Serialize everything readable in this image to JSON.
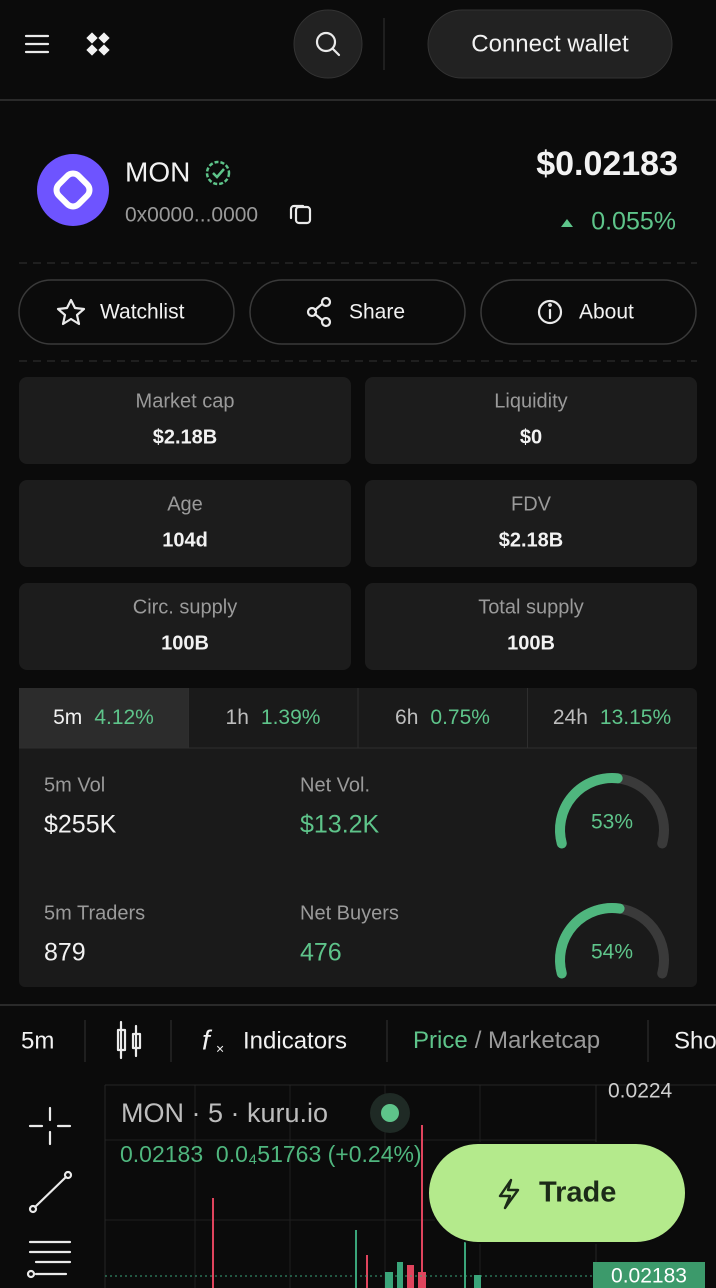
{
  "header": {
    "connect": "Connect wallet"
  },
  "token": {
    "name": "MON",
    "address": "0x0000...0000",
    "price": "$0.02183",
    "change": "0.055%"
  },
  "actions": [
    "Watchlist",
    "Share",
    "About"
  ],
  "stats": [
    {
      "label": "Market cap",
      "value": "$2.18B"
    },
    {
      "label": "Liquidity",
      "value": "$0"
    },
    {
      "label": "Age",
      "value": "104d"
    },
    {
      "label": "FDV",
      "value": "$2.18B"
    },
    {
      "label": "Circ. supply",
      "value": "100B"
    },
    {
      "label": "Total supply",
      "value": "100B"
    }
  ],
  "timeframes": [
    {
      "label": "5m",
      "change": "4.12%"
    },
    {
      "label": "1h",
      "change": "1.39%"
    },
    {
      "label": "6h",
      "change": "0.75%"
    },
    {
      "label": "24h",
      "change": "13.15%"
    }
  ],
  "metrics": [
    {
      "label": "5m Vol",
      "value": "$255K",
      "positive": false
    },
    {
      "label": "Net Vol.",
      "value": "$13.2K",
      "positive": true
    },
    {
      "label": "5m Traders",
      "value": "879",
      "positive": false
    },
    {
      "label": "Net Buyers",
      "value": "476",
      "positive": true
    }
  ],
  "gauges": [
    {
      "value": 53,
      "label": "53%"
    },
    {
      "value": 54,
      "label": "54%"
    }
  ],
  "toolbar": {
    "interval": "5m",
    "indicators": "Indicators",
    "price": "Price",
    "separator": "/ Marketcap",
    "more": "Sho"
  },
  "chart": {
    "title": "MON · 5 · kuru.io",
    "ohlc": "0.02183  0.0₄51763 (+0.24%)",
    "top_tick": "0.0224",
    "current": "0.02183"
  },
  "trade": "Trade"
}
